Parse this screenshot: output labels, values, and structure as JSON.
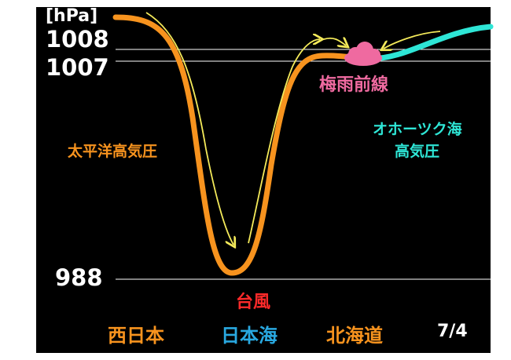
{
  "axis": {
    "unit": "[hPa]",
    "ticks": [
      {
        "label": "1008",
        "value": 1008
      },
      {
        "label": "1007",
        "value": 1007
      },
      {
        "label": "988",
        "value": 988
      }
    ]
  },
  "systems": {
    "pacific_high": "太平洋高気圧",
    "baiu_front": "梅雨前線",
    "okhotsk_high_line1": "オホーツク海",
    "okhotsk_high_line2": "高気圧",
    "typhoon": "台風"
  },
  "regions": {
    "west_japan": "西日本",
    "sea_of_japan": "日本海",
    "hokkaido": "北海道"
  },
  "date": "7/4",
  "colors": {
    "background": "#000000",
    "pressure_line": "#f7931e",
    "arrow": "#f4ea5a",
    "okhotsk_line": "#2ee6d6",
    "front_cloud": "#ef6aa0",
    "front_text": "#ef6aa0",
    "okhotsk_text": "#2ee6d6",
    "typhoon_text": "#ff2a2a",
    "region_orange": "#f7931e",
    "region_blue": "#29a8e0",
    "white": "#ffffff"
  }
}
